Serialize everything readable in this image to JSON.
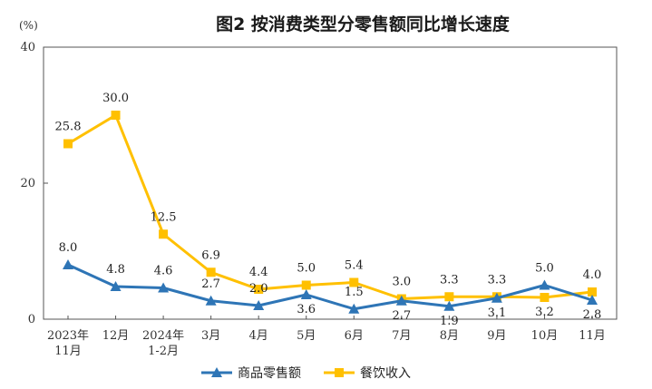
{
  "chart_data": {
    "type": "line",
    "title": "图2  按消费类型分零售额同比增长速度",
    "ylabel": "(%)",
    "xlabel": "",
    "ylim": [
      0,
      40
    ],
    "yticks": [
      "0",
      "20",
      "40"
    ],
    "categories": [
      [
        "2023年",
        "11月"
      ],
      [
        "12月"
      ],
      [
        "2024年",
        "1-2月"
      ],
      [
        "3月"
      ],
      [
        "4月"
      ],
      [
        "5月"
      ],
      [
        "6月"
      ],
      [
        "7月"
      ],
      [
        "8月"
      ],
      [
        "9月"
      ],
      [
        "10月"
      ],
      [
        "11月"
      ]
    ],
    "series": [
      {
        "name": "商品零售额",
        "color": "#2e75b6",
        "marker": "triangle",
        "values": [
          8.0,
          4.8,
          4.6,
          2.7,
          2.0,
          3.6,
          1.5,
          2.7,
          1.9,
          3.1,
          5.0,
          2.8
        ],
        "labels": [
          "8.0",
          "4.8",
          "4.6",
          "2.7",
          "2.0",
          "3.6",
          "1.5",
          "2.7",
          "1.9",
          "3.1",
          "5.0",
          "2.8"
        ],
        "label_side": [
          "above",
          "above",
          "above",
          "above",
          "above",
          "below",
          "above",
          "below",
          "below",
          "below",
          "above",
          "below"
        ]
      },
      {
        "name": "餐饮收入",
        "color": "#ffc000",
        "marker": "square",
        "values": [
          25.8,
          30.0,
          12.5,
          6.9,
          4.4,
          5.0,
          5.4,
          3.0,
          3.3,
          3.3,
          3.2,
          4.0
        ],
        "labels": [
          "25.8",
          "30.0",
          "12.5",
          "6.9",
          "4.4",
          "5.0",
          "5.4",
          "3.0",
          "3.3",
          "3.3",
          "3.2",
          "4.0"
        ],
        "label_side": [
          "above",
          "above",
          "above",
          "above",
          "above",
          "above",
          "above",
          "above",
          "above",
          "above",
          "below",
          "above"
        ]
      }
    ],
    "legend_position": "bottom-center",
    "grid": false
  }
}
